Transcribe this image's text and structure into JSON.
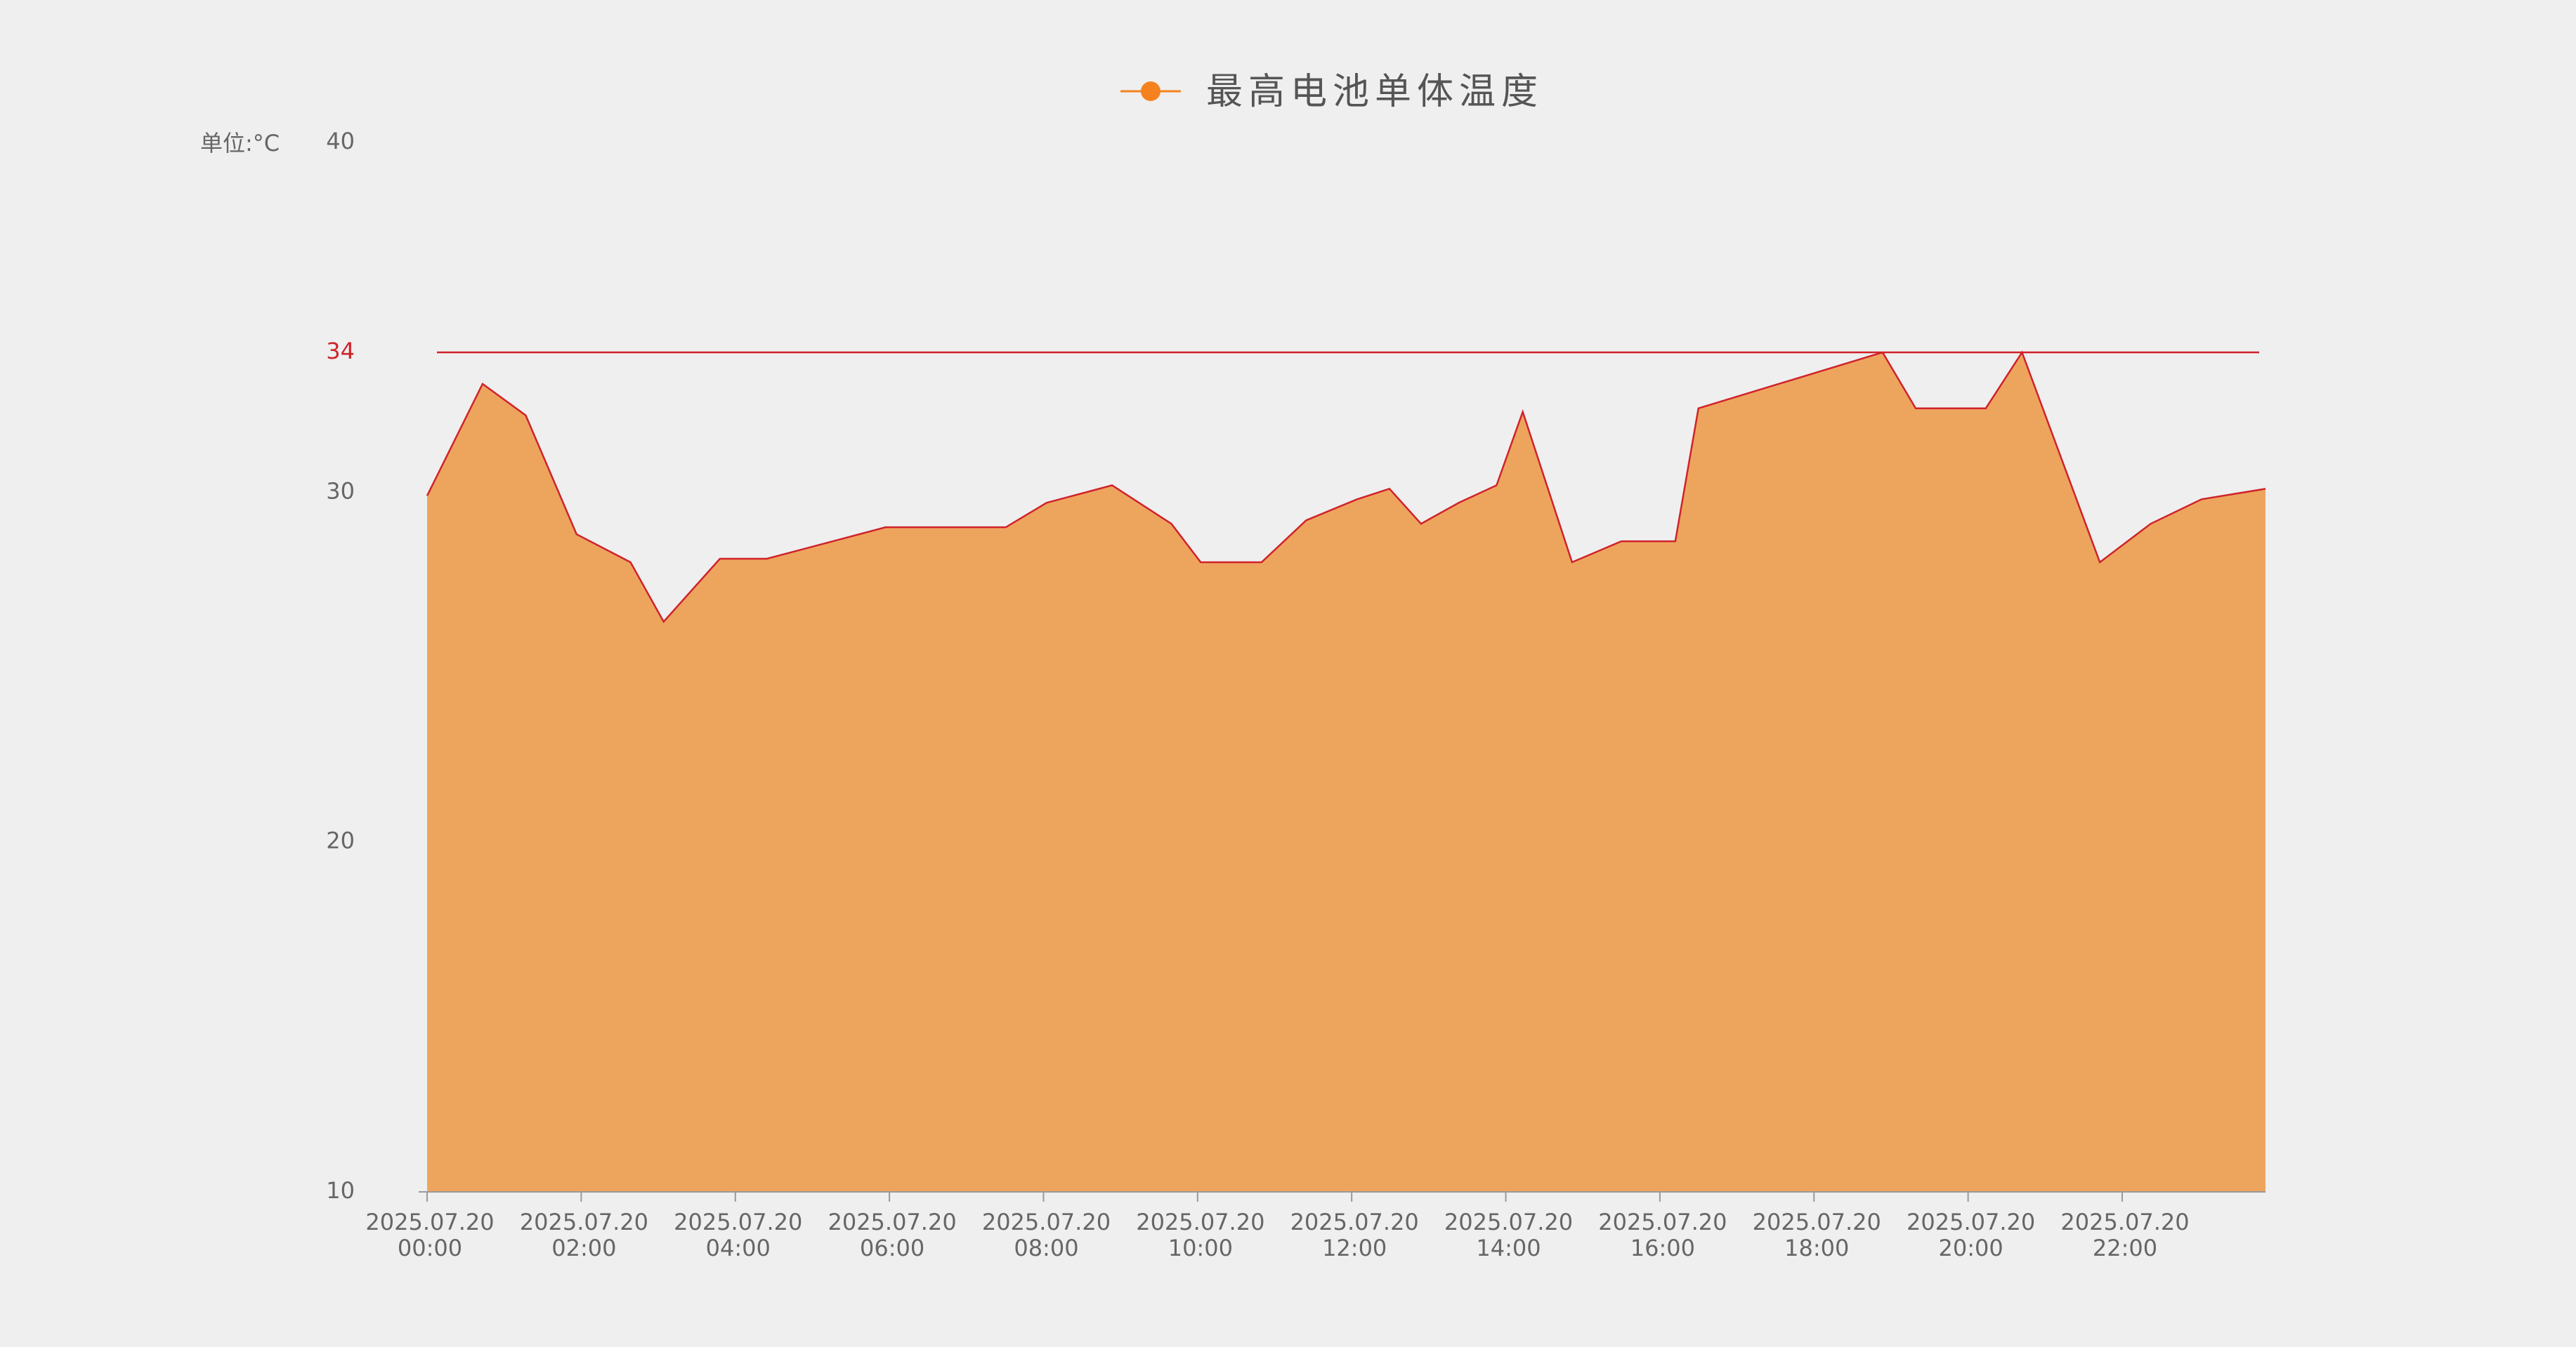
{
  "chart_data": {
    "type": "area",
    "unit_label": "单位:°C",
    "series": [
      {
        "name": "最高电池单体温度",
        "color": "#d0222b",
        "fill": "#eda55e",
        "marker_color": "#f5821f",
        "x": [
          0,
          0.72,
          1.28,
          1.94,
          2.64,
          3.07,
          3.8,
          4.41,
          5.95,
          7.51,
          8.04,
          8.89,
          9.66,
          10.04,
          10.83,
          11.41,
          12.07,
          12.49,
          12.9,
          13.39,
          13.88,
          14.22,
          14.86,
          15.5,
          16.2,
          16.5,
          18.89,
          19.32,
          20.23,
          20.7,
          21.71,
          22.37,
          23.03,
          23.86
        ],
        "values": [
          29.9,
          33.1,
          32.2,
          28.8,
          28.0,
          26.3,
          28.1,
          28.1,
          29.0,
          29.0,
          29.7,
          30.2,
          29.1,
          28.0,
          28.0,
          29.2,
          29.8,
          30.1,
          29.1,
          29.7,
          30.2,
          32.3,
          28.0,
          28.6,
          28.6,
          32.4,
          34,
          32.4,
          32.4,
          34,
          28.0,
          29.1,
          29.8,
          30.1
        ]
      }
    ],
    "threshold": {
      "value": 34,
      "color": "#d0222b"
    },
    "xlim": [
      0,
      23.86
    ],
    "xticks": [
      {
        "value": 0,
        "label": [
          "2025.07.20",
          "00:00"
        ]
      },
      {
        "value": 2,
        "label": [
          "2025.07.20",
          "02:00"
        ]
      },
      {
        "value": 4,
        "label": [
          "2025.07.20",
          "04:00"
        ]
      },
      {
        "value": 6,
        "label": [
          "2025.07.20",
          "06:00"
        ]
      },
      {
        "value": 8,
        "label": [
          "2025.07.20",
          "08:00"
        ]
      },
      {
        "value": 10,
        "label": [
          "2025.07.20",
          "10:00"
        ]
      },
      {
        "value": 12,
        "label": [
          "2025.07.20",
          "12:00"
        ]
      },
      {
        "value": 14,
        "label": [
          "2025.07.20",
          "14:00"
        ]
      },
      {
        "value": 16,
        "label": [
          "2025.07.20",
          "16:00"
        ]
      },
      {
        "value": 18,
        "label": [
          "2025.07.20",
          "18:00"
        ]
      },
      {
        "value": 20,
        "label": [
          "2025.07.20",
          "20:00"
        ]
      },
      {
        "value": 22,
        "label": [
          "2025.07.20",
          "22:00"
        ]
      }
    ],
    "ylim": [
      10,
      40
    ],
    "yticks": [
      10,
      20,
      30,
      40
    ]
  }
}
